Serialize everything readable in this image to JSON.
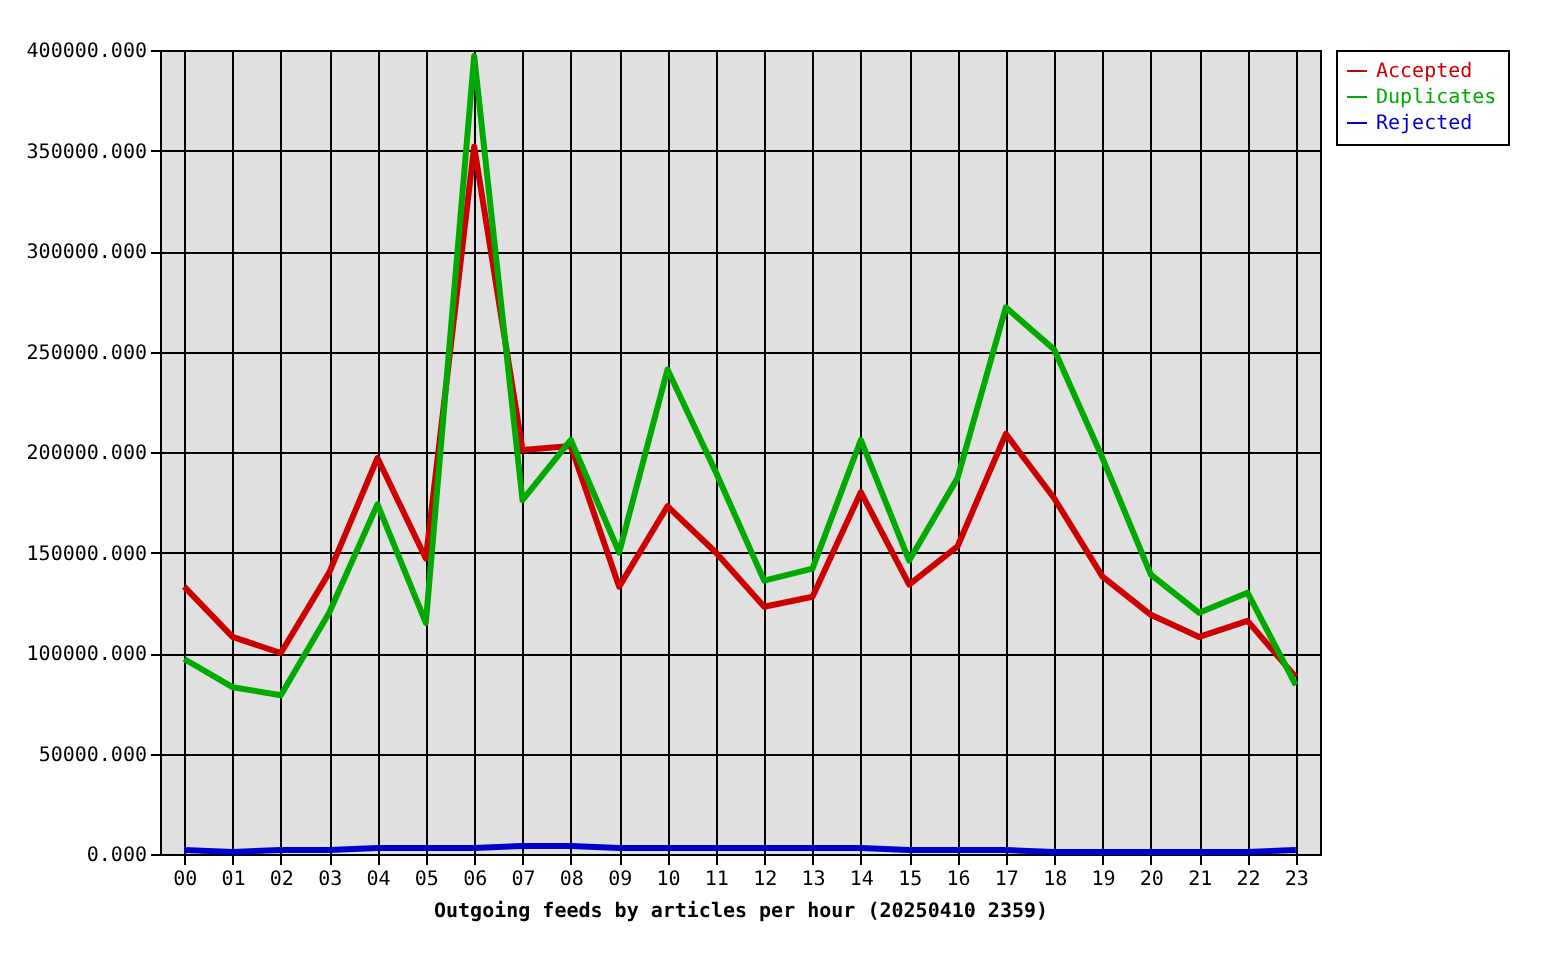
{
  "chart_data": {
    "type": "line",
    "xlabel": "Outgoing feeds by articles per hour (20250410 2359)",
    "categories": [
      "00",
      "01",
      "02",
      "03",
      "04",
      "05",
      "06",
      "07",
      "08",
      "09",
      "10",
      "11",
      "12",
      "13",
      "14",
      "15",
      "16",
      "17",
      "18",
      "19",
      "20",
      "21",
      "22",
      "23"
    ],
    "series": [
      {
        "name": "Accepted",
        "color": "#cc0000",
        "values": [
          133000,
          108000,
          100000,
          140000,
          197000,
          147000,
          352000,
          201000,
          203000,
          133000,
          173000,
          150000,
          123000,
          128000,
          180000,
          134000,
          153000,
          209000,
          177000,
          138000,
          119000,
          108000,
          116000,
          88000
        ]
      },
      {
        "name": "Duplicates",
        "color": "#00aa00",
        "values": [
          97000,
          83000,
          79000,
          120000,
          174000,
          115000,
          397000,
          176000,
          206000,
          150000,
          241000,
          190000,
          136000,
          142000,
          206000,
          146000,
          187000,
          272000,
          251000,
          197000,
          139000,
          120000,
          130000,
          84000
        ]
      },
      {
        "name": "Rejected",
        "color": "#0000cc",
        "values": [
          2000,
          1000,
          2000,
          2000,
          3000,
          3000,
          3000,
          4000,
          4000,
          3000,
          3000,
          3000,
          3000,
          3000,
          3000,
          2000,
          2000,
          2000,
          1000,
          1000,
          1000,
          1000,
          1000,
          2000
        ]
      }
    ],
    "ylim": [
      0,
      400000
    ],
    "yticks": [
      {
        "value": 0,
        "label": "0.000"
      },
      {
        "value": 50000,
        "label": "50000.000"
      },
      {
        "value": 100000,
        "label": "100000.000"
      },
      {
        "value": 150000,
        "label": "150000.000"
      },
      {
        "value": 200000,
        "label": "200000.000"
      },
      {
        "value": 250000,
        "label": "250000.000"
      },
      {
        "value": 300000,
        "label": "300000.000"
      },
      {
        "value": 350000,
        "label": "350000.000"
      },
      {
        "value": 400000,
        "label": "400000.000"
      }
    ],
    "grid": true,
    "legend": "top right",
    "marker": "none",
    "line_style": "solid"
  }
}
